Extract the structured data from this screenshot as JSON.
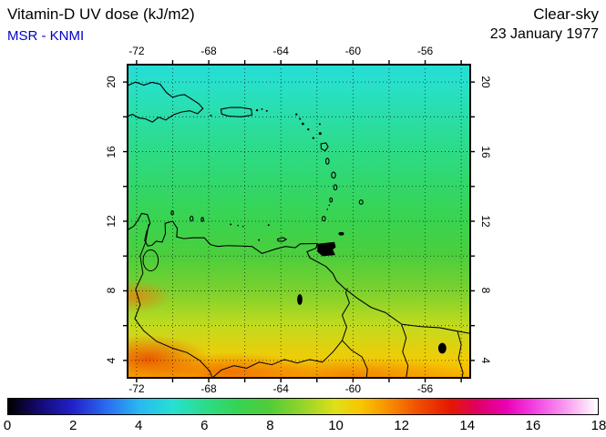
{
  "header": {
    "title": "Vitamin-D UV dose (kJ/m2)",
    "source": "MSR - KNMI",
    "sky": "Clear-sky",
    "date": "23 January 1977"
  },
  "axes": {
    "lon_ticks": [
      -72,
      -68,
      -64,
      -60,
      -56
    ],
    "lat_ticks": [
      20,
      16,
      12,
      8,
      4
    ],
    "lon_range": [
      -72.5,
      -53.5
    ],
    "lat_range": [
      3,
      21
    ],
    "minor_step_deg": 2
  },
  "colorbar": {
    "min": 0,
    "max": 18,
    "ticks": [
      0,
      2,
      4,
      6,
      8,
      10,
      12,
      14,
      16,
      18
    ],
    "stops": [
      {
        "v": 0,
        "c": "#000000"
      },
      {
        "v": 1,
        "c": "#140a78"
      },
      {
        "v": 2,
        "c": "#2222cc"
      },
      {
        "v": 3,
        "c": "#2a6cf0"
      },
      {
        "v": 4,
        "c": "#28b8f0"
      },
      {
        "v": 5,
        "c": "#26e0d2"
      },
      {
        "v": 6,
        "c": "#2cdc8c"
      },
      {
        "v": 7,
        "c": "#36d452"
      },
      {
        "v": 8,
        "c": "#52cc38"
      },
      {
        "v": 9,
        "c": "#96d428"
      },
      {
        "v": 10,
        "c": "#e0e018"
      },
      {
        "v": 10.8,
        "c": "#f8c400"
      },
      {
        "v": 11.6,
        "c": "#f89000"
      },
      {
        "v": 12.5,
        "c": "#f05000"
      },
      {
        "v": 13.5,
        "c": "#e41800"
      },
      {
        "v": 14.3,
        "c": "#e00060"
      },
      {
        "v": 15.2,
        "c": "#ea00b4"
      },
      {
        "v": 16,
        "c": "#f23ce0"
      },
      {
        "v": 17,
        "c": "#f998ef"
      },
      {
        "v": 18,
        "c": "#ffffff"
      }
    ]
  },
  "chart_data": {
    "type": "heatmap",
    "title": "Vitamin-D UV dose (kJ/m2)",
    "subtitle": "MSR - KNMI",
    "condition": "Clear-sky",
    "date": "23 January 1977",
    "unit": "kJ/m2",
    "region": "Caribbean / northern South America",
    "x_axis_ticks": [
      -72,
      -68,
      -64,
      -60,
      -56
    ],
    "y_axis_ticks": [
      20,
      16,
      12,
      8,
      4
    ],
    "lon_range": [
      -72.5,
      -53.5
    ],
    "lat_range": [
      3,
      21
    ],
    "grid": "dotted, every 2 degrees",
    "colorbar_range": [
      0,
      18
    ],
    "colorbar_ticks": [
      0,
      2,
      4,
      6,
      8,
      10,
      12,
      14,
      16,
      18
    ],
    "lat_profile": {
      "lat": [
        21,
        20,
        18,
        16,
        14,
        12,
        10,
        8,
        6,
        4,
        3
      ],
      "dose": [
        4.9,
        5.1,
        5.6,
        6.1,
        6.6,
        7.1,
        7.8,
        8.6,
        9.6,
        10.6,
        11.1
      ]
    },
    "notes": "Dose field is mainly latitudinal: cyan (~5 kJ/m2) at 20N grading through green (~7) and yellow (~9-10) to orange-red (~11-12) near 4N; strongest orange/red patches along the bottom and lower-left edge."
  }
}
